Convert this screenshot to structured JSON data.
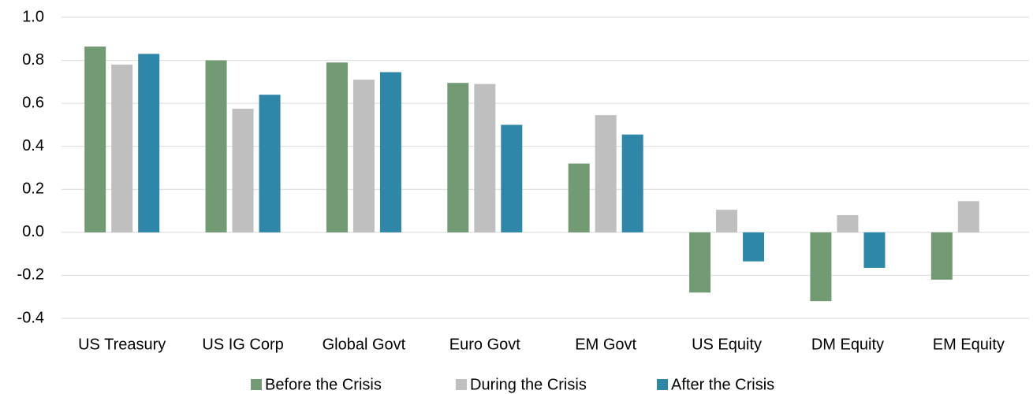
{
  "chart_data": {
    "type": "bar",
    "categories": [
      "US Treasury",
      "US IG Corp",
      "Global Govt",
      "Euro Govt",
      "EM Govt",
      "US Equity",
      "DM Equity",
      "EM Equity"
    ],
    "series": [
      {
        "name": "Before the Crisis",
        "color": "#739b73",
        "values": [
          0.864,
          0.8,
          0.79,
          0.695,
          0.32,
          -0.28,
          -0.32,
          -0.22
        ]
      },
      {
        "name": "During the Crisis",
        "color": "#bfbfbf",
        "values": [
          0.78,
          0.575,
          0.71,
          0.69,
          0.545,
          0.105,
          0.08,
          0.145
        ]
      },
      {
        "name": "After the Crisis",
        "color": "#2e86a8",
        "values": [
          0.83,
          0.64,
          0.745,
          0.5,
          0.455,
          -0.135,
          -0.165,
          null
        ]
      }
    ],
    "ylim": [
      -0.4,
      1.0
    ],
    "yticks": [
      -0.4,
      -0.2,
      {
        "value": 0,
        "label": "0.0"
      },
      0.2,
      0.4,
      0.6,
      0.8,
      {
        "value": 1,
        "label": "1.0"
      }
    ],
    "grid": true,
    "legend": "bottom"
  }
}
